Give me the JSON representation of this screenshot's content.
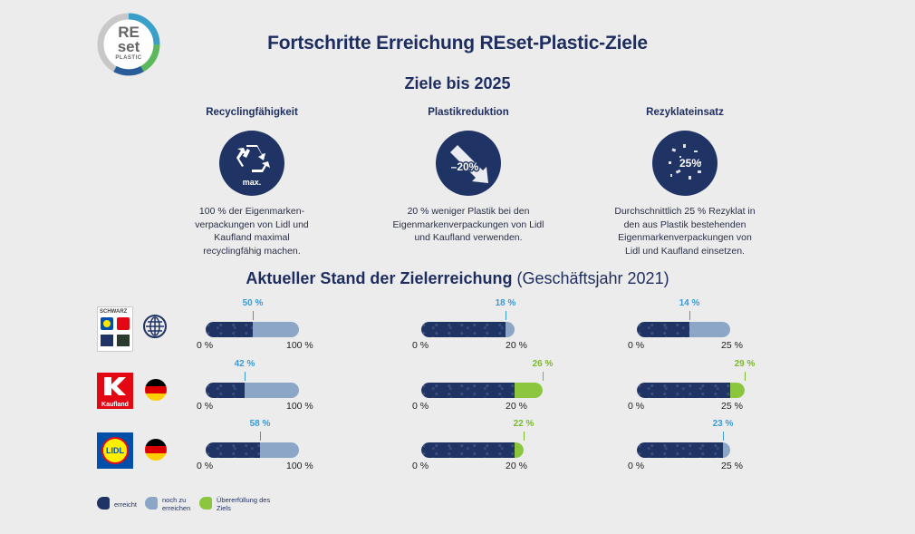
{
  "logo": {
    "line1": "RE",
    "line2": "set",
    "line3": "PLASTIC"
  },
  "title": "Fortschritte Erreichung REset-Plastic-Ziele",
  "subtitle": "Ziele bis 2025",
  "goals": [
    {
      "heading": "Recyclingfähigkeit",
      "icon_text": "max.",
      "text": "100 % der Eigenmarken-verpackungen von Lidl und Kaufland maximal recyclingfähig machen."
    },
    {
      "heading": "Plastikreduktion",
      "icon_text": "–20%",
      "text": "20 % weniger Plastik bei den Eigenmarkenverpackungen von Lidl und Kaufland verwenden."
    },
    {
      "heading": "Rezyklateinsatz",
      "icon_text": "25%",
      "text": "Durchschnittlich 25 % Rezyklat in den aus Plastik bestehenden Eigenmarkenverpackungen von Lidl und Kaufland einsetzen."
    }
  ],
  "status_heading_bold": "Aktueller Stand der Zielerreichung",
  "status_heading_rest": " (Geschäftsjahr 2021)",
  "rows": [
    {
      "company": "Schwarz Gruppe",
      "logo_text": "SCHWARZ",
      "region": "global",
      "bars": [
        {
          "label": "50 %",
          "value": 50,
          "max": 100,
          "axis_min": "0 %",
          "axis_max": "100 %",
          "over": false
        },
        {
          "label": "18 %",
          "value": 18,
          "max": 20,
          "axis_min": "0 %",
          "axis_max": "20 %",
          "over": false
        },
        {
          "label": "14 %",
          "value": 14,
          "max": 25,
          "axis_min": "0 %",
          "axis_max": "25 %",
          "over": false
        }
      ]
    },
    {
      "company": "Kaufland",
      "logo_text": "Kaufland",
      "region": "germany",
      "bars": [
        {
          "label": "42 %",
          "value": 42,
          "max": 100,
          "axis_min": "0 %",
          "axis_max": "100 %",
          "over": false
        },
        {
          "label": "26 %",
          "value": 26,
          "max": 20,
          "axis_min": "0 %",
          "axis_max": "20 %",
          "over": true
        },
        {
          "label": "29 %",
          "value": 29,
          "max": 25,
          "axis_min": "0 %",
          "axis_max": "25 %",
          "over": true
        }
      ]
    },
    {
      "company": "Lidl",
      "logo_text": "LIDL",
      "region": "germany",
      "bars": [
        {
          "label": "58 %",
          "value": 58,
          "max": 100,
          "axis_min": "0 %",
          "axis_max": "100 %",
          "over": false
        },
        {
          "label": "22 %",
          "value": 22,
          "max": 20,
          "axis_min": "0 %",
          "axis_max": "20 %",
          "over": true
        },
        {
          "label": "23 %",
          "value": 23,
          "max": 25,
          "axis_min": "0 %",
          "axis_max": "25 %",
          "over": false
        }
      ]
    }
  ],
  "legend": [
    {
      "label": "erreicht",
      "color": "#1f3465"
    },
    {
      "label": "noch zu erreichen",
      "color": "#8ba6c6"
    },
    {
      "label": "Übererfüllung des Ziels",
      "color": "#8cc63e"
    }
  ],
  "colors": {
    "navy": "#1f3465",
    "light_blue": "#8ba6c6",
    "green": "#8cc63e",
    "cyan_label": "#3a9bd5",
    "green_label": "#7cb82f"
  }
}
